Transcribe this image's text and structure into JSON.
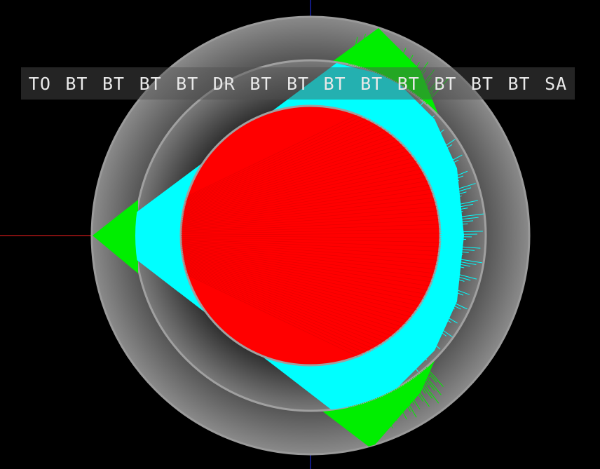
{
  "history": [
    "TO",
    "BT",
    "BT",
    "BT",
    "BT",
    "DR",
    "BT",
    "BT",
    "BT",
    "BT",
    "BT",
    "BT",
    "BT",
    "BT",
    "SA"
  ],
  "colors": {
    "background": "#000000",
    "inner_sphere": "#ff0000",
    "middle_region": "#00ffff",
    "outer_region": "#00ff00",
    "shell_gray": "#808080",
    "x_axis": "#ff0000",
    "y_axis": "#0000ff",
    "label_text": "#e8e8e8"
  }
}
